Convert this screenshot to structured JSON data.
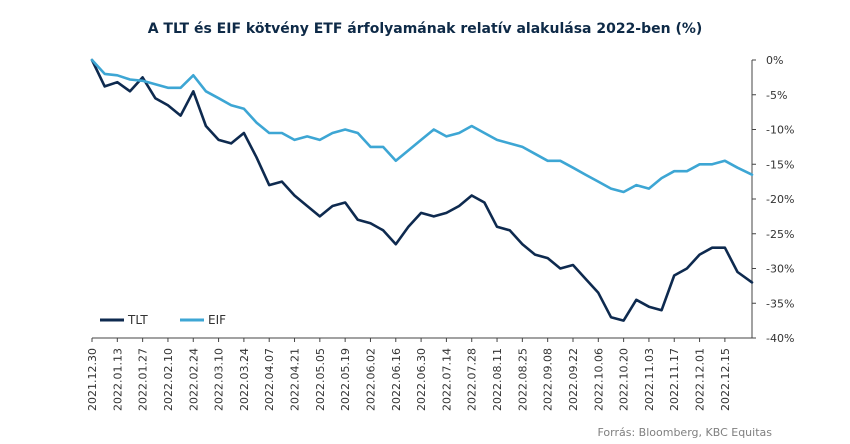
{
  "chart_data": {
    "type": "line",
    "title": "A TLT és EIF kötvény ETF árfolyamának relatív alakulása 2022-ben  (%)",
    "source": "Forrás: Bloomberg,  KBC Equitas",
    "ylim": [
      -40,
      0
    ],
    "y_ticks": [
      0,
      -5,
      -10,
      -15,
      -20,
      -25,
      -30,
      -35,
      -40
    ],
    "y_tick_labels": [
      "0%",
      "-5%",
      "-10%",
      "-15%",
      "-20%",
      "-25%",
      "-30%",
      "-35%",
      "-40%"
    ],
    "x_tick_labels": [
      "2021.12.30",
      "2022.01.13",
      "2022.01.27",
      "2022.02.10",
      "2022.02.24",
      "2022.03.10",
      "2022.03.24",
      "2022.04.07",
      "2022.04.21",
      "2022.05.05",
      "2022.05.19",
      "2022.06.02",
      "2022.06.16",
      "2022.06.30",
      "2022.07.14",
      "2022.07.28",
      "2022.08.11",
      "2022.08.25",
      "2022.09.08",
      "2022.09.22",
      "2022.10.06",
      "2022.10.20",
      "2022.11.03",
      "2022.11.17",
      "2022.12.01",
      "2022.12.15"
    ],
    "legend_position": "bottom-left",
    "grid": false,
    "series": [
      {
        "name": "TLT",
        "color": "#0e2a4f",
        "x": [
          "2021.12.30",
          "2022.01.06",
          "2022.01.13",
          "2022.01.20",
          "2022.01.27",
          "2022.02.03",
          "2022.02.10",
          "2022.02.17",
          "2022.02.24",
          "2022.03.03",
          "2022.03.10",
          "2022.03.17",
          "2022.03.24",
          "2022.03.31",
          "2022.04.07",
          "2022.04.14",
          "2022.04.21",
          "2022.04.28",
          "2022.05.05",
          "2022.05.12",
          "2022.05.19",
          "2022.05.26",
          "2022.06.02",
          "2022.06.09",
          "2022.06.16",
          "2022.06.23",
          "2022.06.30",
          "2022.07.07",
          "2022.07.14",
          "2022.07.21",
          "2022.07.28",
          "2022.08.04",
          "2022.08.11",
          "2022.08.18",
          "2022.08.25",
          "2022.09.01",
          "2022.09.08",
          "2022.09.15",
          "2022.09.22",
          "2022.09.29",
          "2022.10.06",
          "2022.10.13",
          "2022.10.20",
          "2022.10.27",
          "2022.11.03",
          "2022.11.10",
          "2022.11.17",
          "2022.11.24",
          "2022.12.01",
          "2022.12.08",
          "2022.12.15",
          "2022.12.22",
          "2022.12.30"
        ],
        "values": [
          0,
          -3.8,
          -3.2,
          -4.5,
          -2.5,
          -5.5,
          -6.5,
          -8.0,
          -4.5,
          -9.5,
          -11.5,
          -12.0,
          -10.5,
          -14.0,
          -18.0,
          -17.5,
          -19.5,
          -21.0,
          -22.5,
          -21.0,
          -20.5,
          -23.0,
          -23.5,
          -24.5,
          -26.5,
          -24.0,
          -22.0,
          -22.5,
          -22.0,
          -21.0,
          -19.5,
          -20.5,
          -24.0,
          -24.5,
          -26.5,
          -28.0,
          -28.5,
          -30.0,
          -29.5,
          -31.5,
          -33.5,
          -37.0,
          -37.5,
          -34.5,
          -35.5,
          -36.0,
          -31.0,
          -30.0,
          -28.0,
          -27.0,
          -27.0,
          -30.5,
          -32.0
        ]
      },
      {
        "name": "EIF",
        "color": "#3da6d4",
        "x": [
          "2021.12.30",
          "2022.01.06",
          "2022.01.13",
          "2022.01.20",
          "2022.01.27",
          "2022.02.03",
          "2022.02.10",
          "2022.02.17",
          "2022.02.24",
          "2022.03.03",
          "2022.03.10",
          "2022.03.17",
          "2022.03.24",
          "2022.03.31",
          "2022.04.07",
          "2022.04.14",
          "2022.04.21",
          "2022.04.28",
          "2022.05.05",
          "2022.05.12",
          "2022.05.19",
          "2022.05.26",
          "2022.06.02",
          "2022.06.09",
          "2022.06.16",
          "2022.06.23",
          "2022.06.30",
          "2022.07.07",
          "2022.07.14",
          "2022.07.21",
          "2022.07.28",
          "2022.08.04",
          "2022.08.11",
          "2022.08.18",
          "2022.08.25",
          "2022.09.01",
          "2022.09.08",
          "2022.09.15",
          "2022.09.22",
          "2022.09.29",
          "2022.10.06",
          "2022.10.13",
          "2022.10.20",
          "2022.10.27",
          "2022.11.03",
          "2022.11.10",
          "2022.11.17",
          "2022.11.24",
          "2022.12.01",
          "2022.12.08",
          "2022.12.15",
          "2022.12.22",
          "2022.12.30"
        ],
        "values": [
          0,
          -2.0,
          -2.2,
          -2.8,
          -3.0,
          -3.5,
          -4.0,
          -4.0,
          -2.2,
          -4.5,
          -5.5,
          -6.5,
          -7.0,
          -9.0,
          -10.5,
          -10.5,
          -11.5,
          -11.0,
          -11.5,
          -10.5,
          -10.0,
          -10.5,
          -12.5,
          -12.5,
          -14.5,
          -13.0,
          -11.5,
          -10.0,
          -11.0,
          -10.5,
          -9.5,
          -10.5,
          -11.5,
          -12.0,
          -12.5,
          -13.5,
          -14.5,
          -14.5,
          -15.5,
          -16.5,
          -17.5,
          -18.5,
          -19.0,
          -18.0,
          -18.5,
          -17.0,
          -16.0,
          -16.0,
          -15.0,
          -15.0,
          -14.5,
          -15.5,
          -16.5
        ]
      }
    ]
  }
}
